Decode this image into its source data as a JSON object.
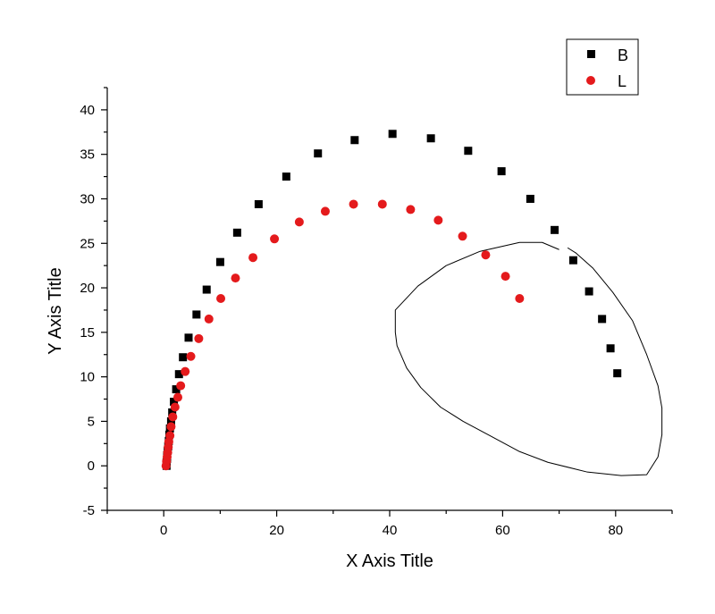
{
  "chart_data": {
    "type": "scatter",
    "title": "",
    "xlabel": "X Axis Title",
    "ylabel": "Y Axis Title",
    "xlim": [
      -10,
      90
    ],
    "ylim": [
      -5,
      42.5
    ],
    "xticks": [
      0,
      20,
      40,
      60,
      80
    ],
    "yticks": [
      -5,
      0,
      5,
      10,
      15,
      20,
      25,
      30,
      35,
      40
    ],
    "grid": false,
    "legend_position": "top-right",
    "series": [
      {
        "name": "B",
        "marker": "square",
        "color": "#000000",
        "points": [
          [
            0.5,
            0
          ],
          [
            0.5,
            0.4
          ],
          [
            0.6,
            0.8
          ],
          [
            0.6,
            1.2
          ],
          [
            0.7,
            1.7
          ],
          [
            0.8,
            2.2
          ],
          [
            0.9,
            2.8
          ],
          [
            1.0,
            3.5
          ],
          [
            1.1,
            4.2
          ],
          [
            1.3,
            5.0
          ],
          [
            1.5,
            6.0
          ],
          [
            1.8,
            7.2
          ],
          [
            2.2,
            8.6
          ],
          [
            2.7,
            10.3
          ],
          [
            3.4,
            12.2
          ],
          [
            4.4,
            14.4
          ],
          [
            5.8,
            17.0
          ],
          [
            7.6,
            19.8
          ],
          [
            10.0,
            22.9
          ],
          [
            13.0,
            26.2
          ],
          [
            16.8,
            29.4
          ],
          [
            21.7,
            32.5
          ],
          [
            27.3,
            35.1
          ],
          [
            33.8,
            36.6
          ],
          [
            40.5,
            37.3
          ],
          [
            47.3,
            36.8
          ],
          [
            53.9,
            35.4
          ],
          [
            59.8,
            33.1
          ],
          [
            64.9,
            30.0
          ],
          [
            69.2,
            26.5
          ],
          [
            72.5,
            23.1
          ],
          [
            75.3,
            19.6
          ],
          [
            77.6,
            16.5
          ],
          [
            79.1,
            13.2
          ],
          [
            80.3,
            10.4
          ]
        ]
      },
      {
        "name": "L",
        "marker": "circle",
        "color": "#e41a1c",
        "points": [
          [
            0.4,
            0
          ],
          [
            0.5,
            0.5
          ],
          [
            0.6,
            1.0
          ],
          [
            0.7,
            1.5
          ],
          [
            0.8,
            2.1
          ],
          [
            0.9,
            2.7
          ],
          [
            1.1,
            3.4
          ],
          [
            1.3,
            4.4
          ],
          [
            1.6,
            5.5
          ],
          [
            2.0,
            6.6
          ],
          [
            2.5,
            7.7
          ],
          [
            3.0,
            9.0
          ],
          [
            3.8,
            10.6
          ],
          [
            4.8,
            12.3
          ],
          [
            6.2,
            14.3
          ],
          [
            8.0,
            16.5
          ],
          [
            10.1,
            18.8
          ],
          [
            12.7,
            21.1
          ],
          [
            15.8,
            23.4
          ],
          [
            19.6,
            25.5
          ],
          [
            24.0,
            27.4
          ],
          [
            28.6,
            28.6
          ],
          [
            33.6,
            29.4
          ],
          [
            38.7,
            29.4
          ],
          [
            43.7,
            28.8
          ],
          [
            48.6,
            27.6
          ],
          [
            52.9,
            25.8
          ],
          [
            57.0,
            23.7
          ],
          [
            60.5,
            21.3
          ],
          [
            63.0,
            18.8
          ]
        ]
      }
    ],
    "annotation_freehand_loop": [
      [
        70,
        24.3
      ],
      [
        67,
        25.1
      ],
      [
        63,
        25.1
      ],
      [
        56,
        24.1
      ],
      [
        50,
        22.5
      ],
      [
        45,
        20.2
      ],
      [
        41,
        17.5
      ],
      [
        41,
        15
      ],
      [
        41.3,
        13.5
      ],
      [
        43,
        11
      ],
      [
        45.5,
        8.8
      ],
      [
        49,
        6.6
      ],
      [
        53,
        5
      ],
      [
        58,
        3.3
      ],
      [
        63,
        1.6
      ],
      [
        68,
        0.4
      ],
      [
        75,
        -0.7
      ],
      [
        81,
        -1.1
      ],
      [
        85.5,
        -1.0
      ],
      [
        87.5,
        1.0
      ],
      [
        88.2,
        3.5
      ],
      [
        88.2,
        6.5
      ],
      [
        87.5,
        9.0
      ],
      [
        85.5,
        12.5
      ],
      [
        83,
        16.3
      ],
      [
        79.5,
        19.5
      ],
      [
        76,
        22.2
      ],
      [
        73,
        23.9
      ],
      [
        71.5,
        24.5
      ]
    ]
  }
}
